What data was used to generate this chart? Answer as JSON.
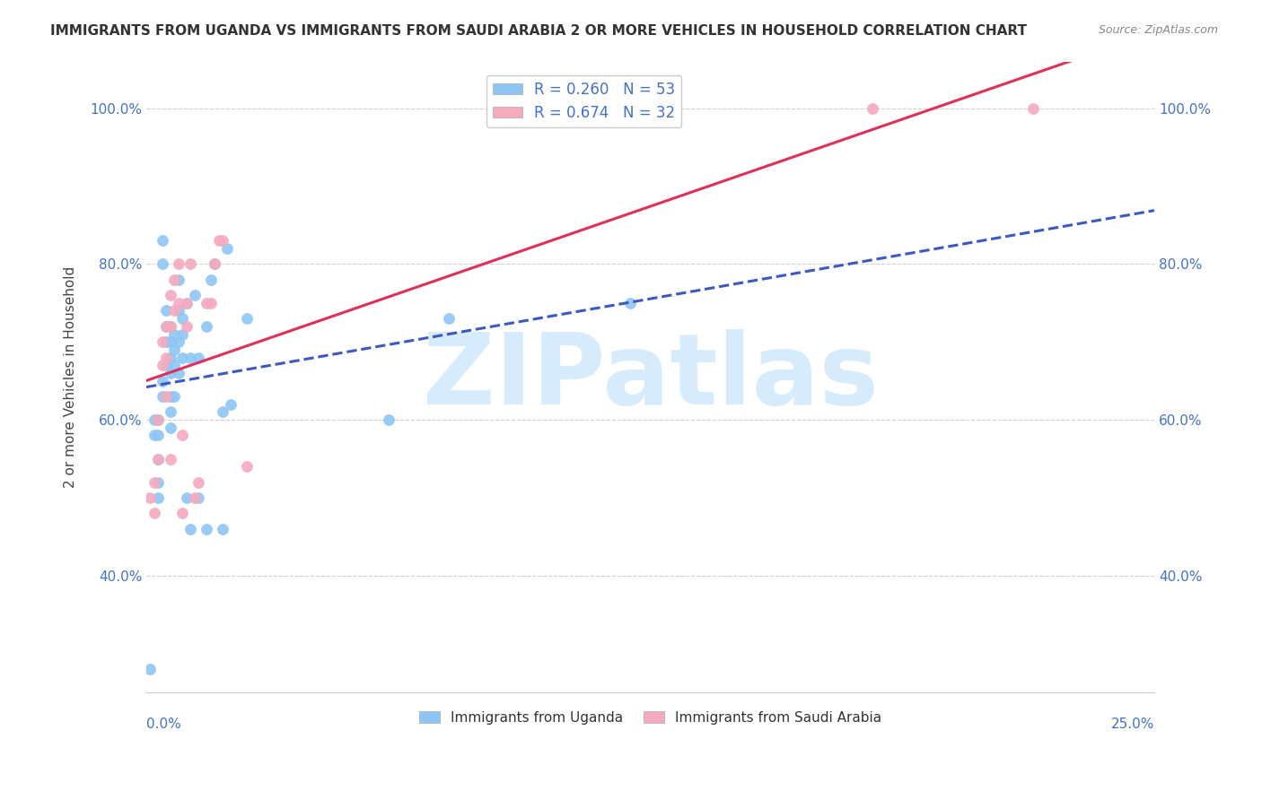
{
  "title": "IMMIGRANTS FROM UGANDA VS IMMIGRANTS FROM SAUDI ARABIA 2 OR MORE VEHICLES IN HOUSEHOLD CORRELATION CHART",
  "source": "Source: ZipAtlas.com",
  "ylabel": "2 or more Vehicles in Household",
  "legend_bottom_label1": "Immigrants from Uganda",
  "legend_bottom_label2": "Immigrants from Saudi Arabia",
  "uganda_color": "#8dc6f5",
  "saudi_color": "#f5aabe",
  "uganda_line_color": "#3a5abf",
  "saudi_line_color": "#e0305a",
  "watermark": "ZIPatlas",
  "watermark_color": "#d6ecfc",
  "background_color": "#ffffff",
  "R_uganda": 0.26,
  "N_uganda": 53,
  "R_saudi": 0.674,
  "N_saudi": 32,
  "uganda_x": [
    0.001,
    0.002,
    0.002,
    0.003,
    0.003,
    0.003,
    0.003,
    0.003,
    0.004,
    0.004,
    0.004,
    0.004,
    0.005,
    0.005,
    0.005,
    0.005,
    0.006,
    0.006,
    0.006,
    0.006,
    0.006,
    0.006,
    0.006,
    0.007,
    0.007,
    0.007,
    0.007,
    0.008,
    0.008,
    0.008,
    0.008,
    0.009,
    0.009,
    0.009,
    0.01,
    0.01,
    0.011,
    0.011,
    0.012,
    0.013,
    0.013,
    0.015,
    0.015,
    0.016,
    0.017,
    0.019,
    0.019,
    0.02,
    0.021,
    0.025,
    0.06,
    0.075,
    0.12
  ],
  "uganda_y": [
    0.28,
    0.6,
    0.58,
    0.6,
    0.58,
    0.55,
    0.52,
    0.5,
    0.83,
    0.8,
    0.65,
    0.63,
    0.74,
    0.72,
    0.7,
    0.67,
    0.72,
    0.7,
    0.68,
    0.66,
    0.63,
    0.61,
    0.59,
    0.71,
    0.69,
    0.67,
    0.63,
    0.78,
    0.74,
    0.7,
    0.66,
    0.73,
    0.71,
    0.68,
    0.75,
    0.5,
    0.68,
    0.46,
    0.76,
    0.68,
    0.5,
    0.72,
    0.46,
    0.78,
    0.8,
    0.61,
    0.46,
    0.82,
    0.62,
    0.73,
    0.6,
    0.73,
    0.75
  ],
  "saudi_x": [
    0.001,
    0.002,
    0.002,
    0.003,
    0.003,
    0.004,
    0.004,
    0.005,
    0.005,
    0.005,
    0.006,
    0.006,
    0.006,
    0.007,
    0.007,
    0.008,
    0.008,
    0.009,
    0.009,
    0.01,
    0.01,
    0.011,
    0.012,
    0.013,
    0.015,
    0.016,
    0.017,
    0.018,
    0.019,
    0.025,
    0.18,
    0.22
  ],
  "saudi_y": [
    0.5,
    0.52,
    0.48,
    0.6,
    0.55,
    0.7,
    0.67,
    0.72,
    0.68,
    0.63,
    0.76,
    0.72,
    0.55,
    0.78,
    0.74,
    0.8,
    0.75,
    0.58,
    0.48,
    0.75,
    0.72,
    0.8,
    0.5,
    0.52,
    0.75,
    0.75,
    0.8,
    0.83,
    0.83,
    0.54,
    1.0,
    1.0
  ],
  "xlim": [
    0.0,
    0.25
  ],
  "ylim": [
    0.25,
    1.06
  ],
  "y_tick_vals": [
    0.4,
    0.6,
    0.8,
    1.0
  ],
  "y_tick_labels": [
    "40.0%",
    "60.0%",
    "80.0%",
    "100.0%"
  ],
  "tick_color": "#4472c4"
}
